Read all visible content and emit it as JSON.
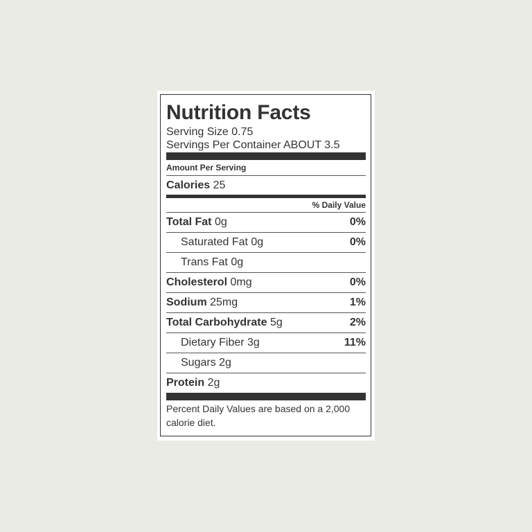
{
  "label": {
    "title": "Nutrition Facts",
    "serving_size": "Serving Size 0.75",
    "servings_per_container": "Servings Per Container ABOUT 3.5",
    "amount_per_serving": "Amount Per Serving",
    "calories": {
      "name": "Calories",
      "amount": "25"
    },
    "daily_value_header": "% Daily Value",
    "nutrients": [
      {
        "name": "Total Fat",
        "amount": "0g",
        "dv": "0%",
        "sub": [
          {
            "name": "Saturated Fat",
            "amount": "0g",
            "dv": "0%"
          },
          {
            "name": "Trans Fat",
            "amount": "0g"
          }
        ]
      },
      {
        "name": "Cholesterol",
        "amount": "0mg",
        "dv": "0%"
      },
      {
        "name": "Sodium",
        "amount": "25mg",
        "dv": "1%"
      },
      {
        "name": "Total Carbohydrate",
        "amount": "5g",
        "dv": "2%",
        "sub": [
          {
            "name": "Dietary Fiber",
            "amount": "3g",
            "dv": "11%"
          },
          {
            "name": "Sugars",
            "amount": "2g"
          }
        ]
      },
      {
        "name": "Protein",
        "amount": "2g"
      }
    ],
    "footnote": "Percent Daily Values are based on a 2,000 calorie diet."
  }
}
